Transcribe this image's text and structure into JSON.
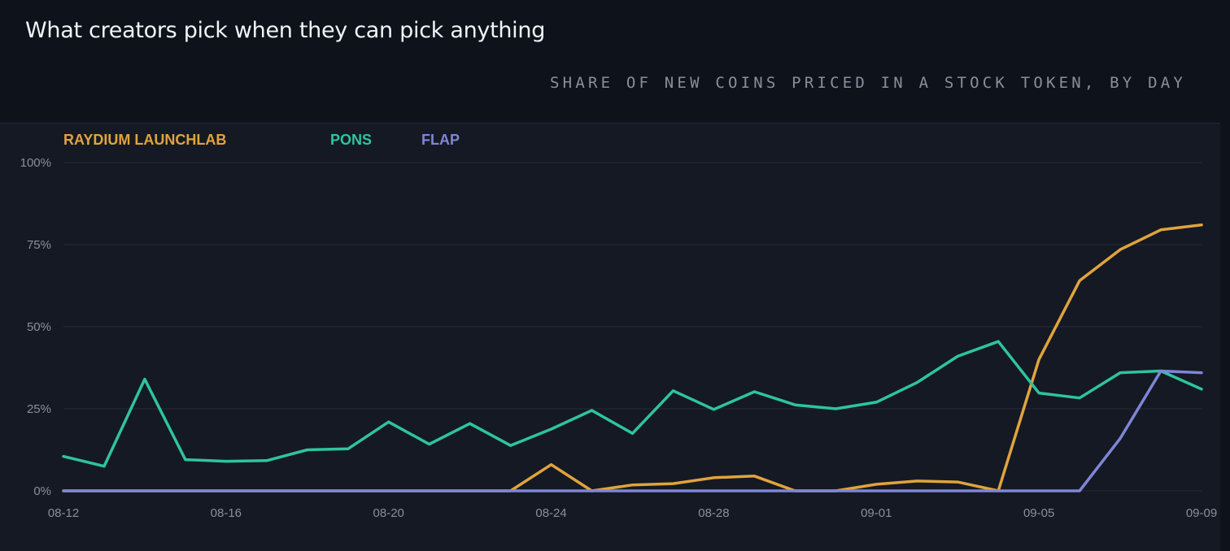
{
  "header": {
    "title": "What creators pick when they can pick anything",
    "subtitle": "SHARE OF NEW COINS PRICED IN A STOCK TOKEN, BY DAY"
  },
  "colors": {
    "raydium": "#e0a43d",
    "pons": "#2ec4a0",
    "flap": "#7e86d6",
    "grid": "#272b3a",
    "axis_text": "#8a8f9c"
  },
  "chart_data": {
    "type": "line",
    "title": "What creators pick when they can pick anything",
    "subtitle": "SHARE OF NEW COINS PRICED IN A STOCK TOKEN, BY DAY",
    "legend": "top-left",
    "grid": true,
    "ylim": [
      0,
      100
    ],
    "yticks": [
      "0%",
      "25%",
      "50%",
      "75%",
      "100%"
    ],
    "ytick_values": [
      0,
      25,
      50,
      75,
      100
    ],
    "xticks": [
      "08-12",
      "08-16",
      "08-20",
      "08-24",
      "08-28",
      "09-01",
      "09-05",
      "09-09"
    ],
    "xtick_index": [
      0,
      4,
      8,
      12,
      16,
      20,
      24,
      28
    ],
    "x": [
      "08-12",
      "08-13",
      "08-14",
      "08-15",
      "08-16",
      "08-17",
      "08-18",
      "08-19",
      "08-20",
      "08-21",
      "08-22",
      "08-23",
      "08-24",
      "08-25",
      "08-26",
      "08-27",
      "08-28",
      "08-29",
      "08-30",
      "08-31",
      "09-01",
      "09-02",
      "09-03",
      "09-04",
      "09-05",
      "09-06",
      "09-07",
      "09-08",
      "09-09"
    ],
    "series": [
      {
        "name": "RAYDIUM LAUNCHLAB",
        "color": "#e0a43d",
        "values": [
          0,
          0,
          0,
          0,
          0,
          0,
          0,
          0,
          0,
          0,
          0,
          0,
          8,
          0,
          1.8,
          2.2,
          4,
          4.5,
          0,
          0,
          2,
          3,
          2.7,
          0,
          40,
          64,
          73.5,
          79.5,
          81
        ]
      },
      {
        "name": "PONS",
        "color": "#2ec4a0",
        "values": [
          10.5,
          7.5,
          34,
          9.5,
          9,
          9.2,
          12.5,
          12.8,
          21,
          14.2,
          20.5,
          13.8,
          18.8,
          24.5,
          17.5,
          30.5,
          24.8,
          30.2,
          26.2,
          25,
          27,
          33,
          41,
          45.5,
          29.8,
          28.3,
          36,
          36.5,
          31
        ]
      },
      {
        "name": "FLAP",
        "color": "#7e86d6",
        "values": [
          0,
          0,
          0,
          0,
          0,
          0,
          0,
          0,
          0,
          0,
          0,
          0,
          0,
          0,
          0,
          0,
          0,
          0,
          0,
          0,
          0,
          0,
          0,
          0,
          0,
          0,
          16,
          36.5,
          36
        ]
      }
    ]
  }
}
